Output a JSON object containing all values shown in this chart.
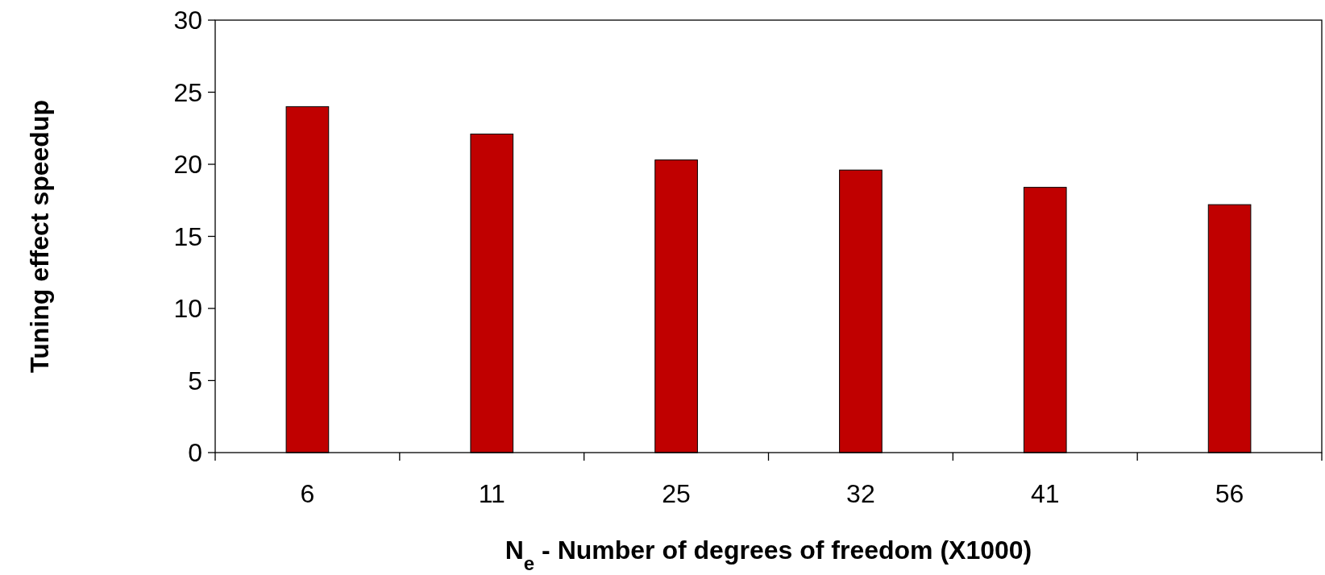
{
  "chart_data": {
    "type": "bar",
    "xlabel": "N$_{e}$ - Number of degrees of freedom (X1000)",
    "ylabel": "Tuning effect speedup",
    "categories": [
      "6",
      "11",
      "25",
      "32",
      "41",
      "56"
    ],
    "values": [
      24,
      22.1,
      20.3,
      19.6,
      18.4,
      17.2
    ],
    "color": "#c00000",
    "ylim": [
      0,
      30
    ],
    "yticks": [
      0,
      5,
      10,
      15,
      20,
      25,
      30
    ],
    "grid": false
  }
}
